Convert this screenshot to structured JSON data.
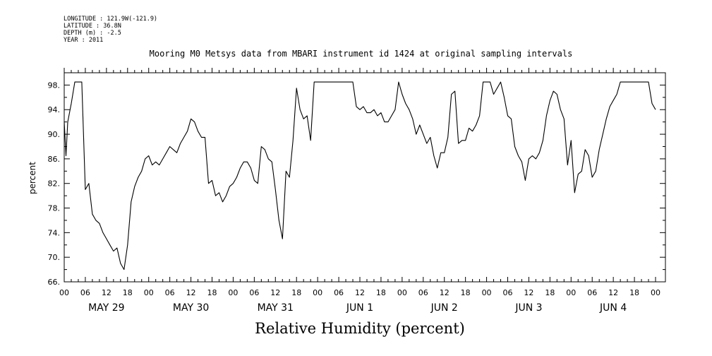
{
  "header": {
    "longitude": "LONGITUDE : 121.9W(-121.9)",
    "latitude": "LATITUDE : 36.8N",
    "depth": "DEPTH (m) : -2.5",
    "year": "YEAR : 2011"
  },
  "chart_data": {
    "type": "line",
    "title": "Mooring M0 Metsys data from MBARI instrument id 1424 at original sampling intervals",
    "xlabel": "Relative Humidity (percent)",
    "ylabel": "percent",
    "ylim": [
      66,
      100
    ],
    "xlim_hours": [
      0,
      168
    ],
    "y_ticks": [
      "66.",
      "70.",
      "74.",
      "78.",
      "82.",
      "86.",
      "90.",
      "94.",
      "98."
    ],
    "hour_ticks": [
      "00",
      "06",
      "12",
      "18",
      "00",
      "06",
      "12",
      "18",
      "00",
      "06",
      "12",
      "18",
      "00",
      "06",
      "12",
      "18",
      "00",
      "06",
      "12",
      "18",
      "00",
      "06",
      "12",
      "18",
      "00",
      "06",
      "12",
      "18",
      "00"
    ],
    "day_labels": [
      "MAY 29",
      "MAY 30",
      "MAY 31",
      "JUN 1",
      "JUN 2",
      "JUN 3",
      "JUN 4"
    ],
    "grid": false,
    "x_hours": [
      0,
      0.5,
      1,
      2,
      3,
      5,
      6,
      7,
      8,
      9,
      10,
      11,
      12,
      13,
      14,
      15,
      16,
      17,
      18,
      19,
      20,
      21,
      22,
      23,
      24,
      25,
      26,
      27,
      28,
      29,
      30,
      31,
      32,
      33,
      34,
      35,
      36,
      37,
      38,
      39,
      40,
      41,
      42,
      43,
      44,
      45,
      46,
      47,
      48,
      49,
      50,
      51,
      52,
      53,
      54,
      55,
      56,
      57,
      58,
      59,
      60,
      61,
      62,
      63,
      64,
      65,
      66,
      67,
      68,
      69,
      70,
      71,
      72,
      73,
      74,
      75,
      76,
      77,
      78,
      79,
      80,
      81,
      82,
      83,
      84,
      85,
      86,
      87,
      88,
      89,
      90,
      91,
      92,
      93,
      94,
      95,
      96,
      97,
      98,
      99,
      100,
      101,
      102,
      103,
      104,
      105,
      106,
      107,
      108,
      109,
      110,
      111,
      112,
      113,
      114,
      115,
      116,
      117,
      118,
      119,
      120,
      121,
      122,
      123,
      124,
      125,
      126,
      127,
      128,
      129,
      130,
      131,
      132,
      133,
      134,
      135,
      136,
      137,
      138,
      139,
      140,
      141,
      142,
      143,
      144,
      145,
      146,
      147,
      148,
      149,
      150,
      151,
      152,
      153,
      154,
      155,
      156,
      157,
      158,
      159,
      160,
      161,
      162,
      163,
      164,
      165,
      166,
      167,
      168
    ],
    "values": [
      92,
      86.5,
      92,
      95,
      98.5,
      98.5,
      81,
      82,
      77,
      76,
      75.5,
      74,
      73,
      72,
      71,
      71.5,
      69,
      68,
      72,
      79,
      81.5,
      83,
      84,
      86,
      86.5,
      85,
      85.5,
      85,
      86,
      87,
      88,
      87.5,
      87,
      88.5,
      89.5,
      90.5,
      92.5,
      92,
      90.5,
      89.5,
      89.5,
      82,
      82.5,
      80,
      80.5,
      79,
      80,
      81.5,
      82,
      83,
      84.5,
      85.5,
      85.5,
      84.5,
      82.5,
      82,
      88,
      87.5,
      86,
      85.5,
      81,
      76,
      73,
      84,
      83,
      89,
      97.5,
      94,
      92.5,
      93,
      89,
      98.5,
      98.5,
      98.5,
      98.5,
      98.5,
      98.5,
      98.5,
      98.5,
      98.5,
      98.5,
      98.5,
      98.5,
      94.5,
      94,
      94.5,
      93.5,
      93.5,
      94,
      93,
      93.5,
      92,
      92,
      93,
      94,
      98.5,
      96.5,
      95,
      94,
      92.5,
      90,
      91.5,
      90,
      88.5,
      89.5,
      86.5,
      84.5,
      87,
      87,
      89.5,
      96.5,
      97,
      88.5,
      89,
      89,
      91,
      90.5,
      91.5,
      93,
      98.5,
      98.5,
      98.5,
      96.5,
      97.5,
      98.5,
      96,
      93,
      92.5,
      88,
      86.5,
      85.5,
      82.5,
      86,
      86.5,
      86,
      87,
      89,
      93,
      95.5,
      97,
      96.5,
      94,
      92.5,
      85,
      89,
      80.5,
      83.5,
      84,
      87.5,
      86.5,
      83,
      84,
      87.5,
      90,
      92.5,
      94.5,
      95.5,
      96.5,
      98.5,
      98.5,
      98.5,
      98.5,
      98.5,
      98.5,
      98.5,
      98.5,
      98.5,
      95,
      94
    ]
  },
  "colors": {
    "line": "#000000",
    "axis": "#000000",
    "background": "#ffffff"
  }
}
